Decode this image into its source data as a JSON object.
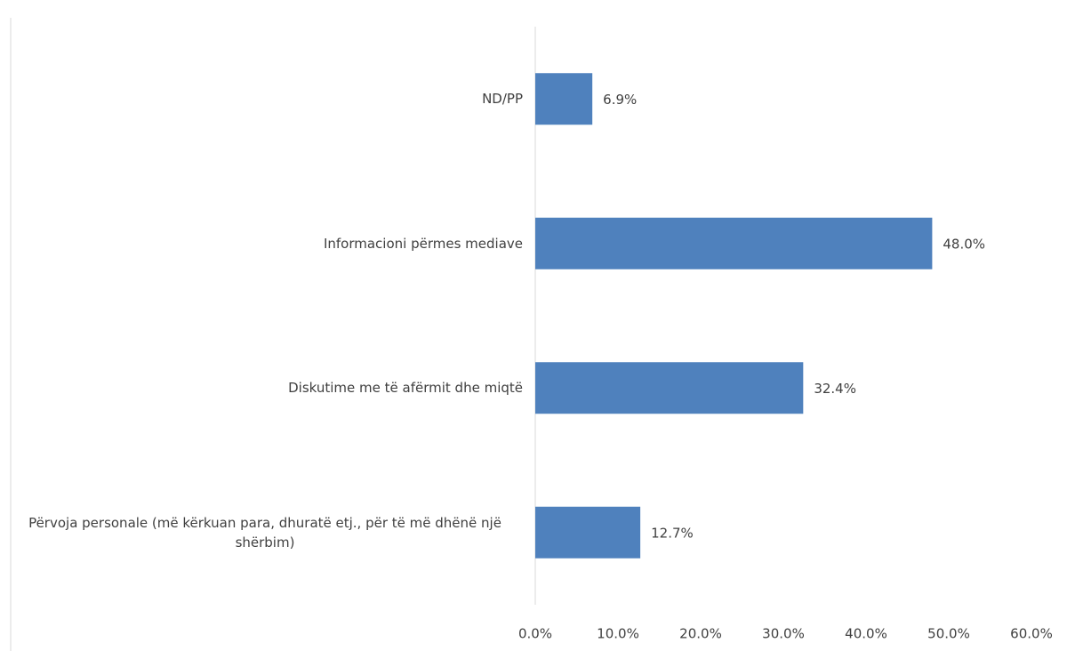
{
  "chart_data": {
    "type": "bar",
    "orientation": "horizontal",
    "categories": [
      "ND/PP",
      "Informacioni përmes mediave",
      "Diskutime me të afërmit dhe miqtë",
      "Përvoja personale (më kërkuan para, dhuratë etj., për të më dhënë një shërbim)"
    ],
    "values": [
      6.9,
      48.0,
      32.4,
      12.7
    ],
    "value_labels": [
      "6.9%",
      "48.0%",
      "32.4%",
      "12.7%"
    ],
    "color": "#4f81bd",
    "xlim": [
      0,
      60
    ],
    "xticks": [
      {
        "value": 0,
        "label": "0.0%"
      },
      {
        "value": 10,
        "label": "10.0%"
      },
      {
        "value": 20,
        "label": "20.0%"
      },
      {
        "value": 30,
        "label": "30.0%"
      },
      {
        "value": 40,
        "label": "40.0%"
      },
      {
        "value": 50,
        "label": "50.0%"
      },
      {
        "value": 60,
        "label": "60.0%"
      }
    ]
  }
}
